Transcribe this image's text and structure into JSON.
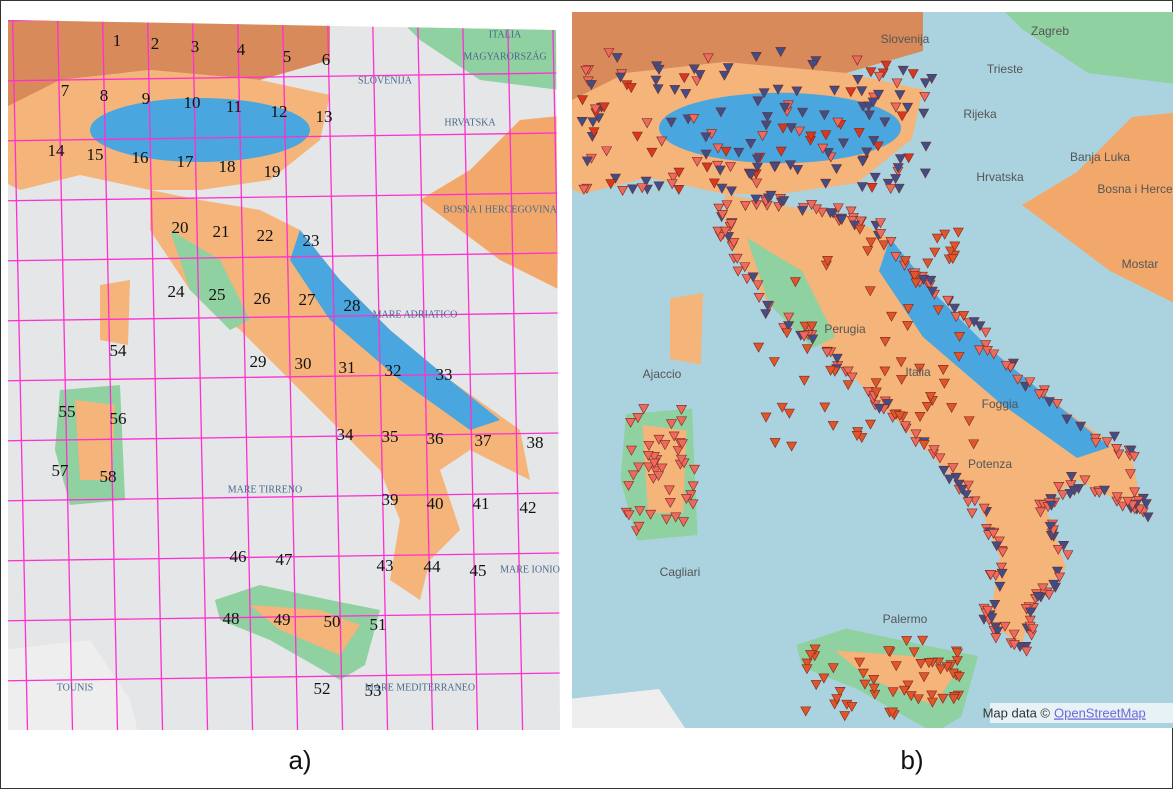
{
  "panel_a": {
    "grid_labels": [
      "1",
      "2",
      "3",
      "4",
      "5",
      "6",
      "7",
      "8",
      "9",
      "10",
      "11",
      "12",
      "13",
      "14",
      "15",
      "16",
      "17",
      "18",
      "19",
      "20",
      "21",
      "22",
      "23",
      "24",
      "25",
      "26",
      "27",
      "28",
      "29",
      "30",
      "31",
      "32",
      "33",
      "34",
      "35",
      "36",
      "37",
      "38",
      "39",
      "40",
      "41",
      "42",
      "43",
      "44",
      "45",
      "46",
      "47",
      "48",
      "49",
      "50",
      "51",
      "52",
      "53",
      "54",
      "55",
      "56",
      "57",
      "58"
    ],
    "map_labels": [
      "ITALIA",
      "MAGYARORSZÁG",
      "SLOVENIJA",
      "HRVATSKA",
      "BOSNA I HERCEGOVINA",
      "MARE ADRIATICO",
      "MARE TIRRENO",
      "MARE IONIO",
      "TOUNIS",
      "MARE MEDITERRANEO"
    ],
    "caption": "a)"
  },
  "panel_b": {
    "map_labels": [
      "Slovenija",
      "Zagreb",
      "Rijeka",
      "Banja Luka",
      "Hrvatska",
      "Bosna i Herce",
      "Perugia",
      "Italia",
      "Foggia",
      "Potenza",
      "Ajaccio",
      "Cagliari",
      "Palermo",
      "Mostar",
      "Trieste"
    ],
    "attribution": "Map data ©",
    "attribution_link": "OpenStreetMap",
    "caption": "b)"
  }
}
